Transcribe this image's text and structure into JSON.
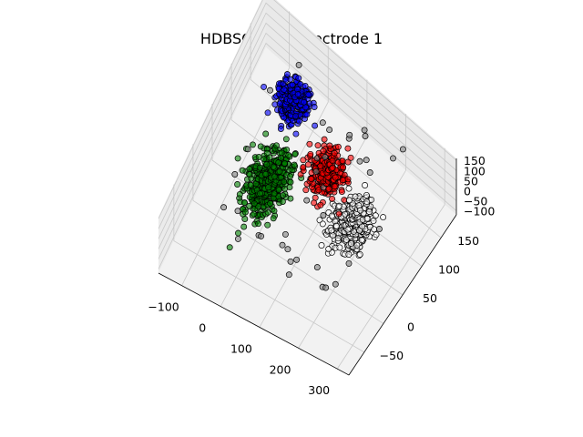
{
  "chart_data": {
    "type": "scatter",
    "projection": "3d",
    "title": "HDBSCAN on Electrode 1",
    "xlabel": "",
    "ylabel": "",
    "zlabel": "",
    "x_ticks": [
      "−100",
      "0",
      "100",
      "200",
      "300"
    ],
    "y_ticks": [
      "−50",
      "0",
      "50",
      "100",
      "150"
    ],
    "z_ticks": [
      "−100",
      "−50",
      "0",
      "50",
      "100",
      "150"
    ],
    "grid": true,
    "clusters": [
      {
        "color": "#0000ff",
        "center": [
          -40,
          140,
          0
        ],
        "spread": [
          18,
          10
        ],
        "count": 300
      },
      {
        "color": "#008000",
        "center": [
          -10,
          45,
          0
        ],
        "spread": [
          22,
          22
        ],
        "count": 420
      },
      {
        "color": "#ff0000",
        "center": [
          90,
          95,
          0
        ],
        "spread": [
          20,
          13
        ],
        "count": 260
      },
      {
        "color": "#ffffff",
        "center": [
          190,
          60,
          0
        ],
        "spread": [
          22,
          18
        ],
        "count": 330
      }
    ],
    "noise": {
      "color": "#808080",
      "count": 45
    }
  }
}
